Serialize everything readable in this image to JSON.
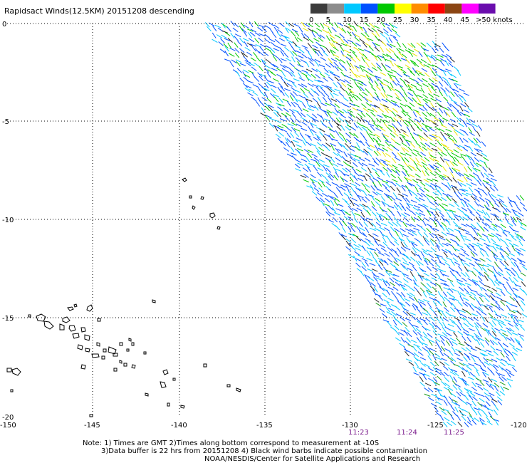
{
  "title": "Rapidsact Winds(12.5KM) 20151208 descending",
  "legend": {
    "labels": [
      "0",
      "5",
      "10",
      "15",
      "20",
      "25",
      "30",
      "35",
      "40",
      "45",
      ">50 knots"
    ],
    "colors": [
      "#3c3c3c",
      "#8c8c8c",
      "#00c8ff",
      "#0050ff",
      "#00c800",
      "#ffff00",
      "#ff8c00",
      "#ff0000",
      "#8b4513",
      "#ff00ff",
      "#6a0dad"
    ]
  },
  "lat_labels": [
    "0",
    "-5",
    "-10",
    "-15",
    "-20"
  ],
  "lon_labels": [
    "-150",
    "-145",
    "-140",
    "-135",
    "-130",
    "-125",
    "-120"
  ],
  "time_labels": [
    "11:23",
    "11:24",
    "11:25"
  ],
  "notes": [
    "Note: 1) Times are GMT 2)Times along bottom correspond to measurement at -10S",
    "3)Data buffer is 22 hrs from 20151208 4) Black wind barbs indicate possible contamination",
    "NOAA/NESDIS/Center for Satellite Applications and Research"
  ]
}
